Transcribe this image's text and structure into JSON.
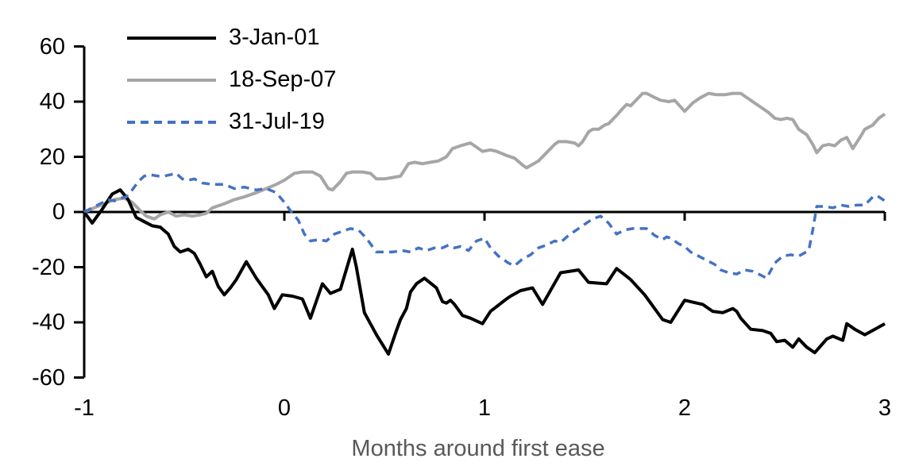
{
  "chart_data": {
    "type": "line",
    "title": "",
    "xlabel": "Months around first ease",
    "ylabel": "",
    "xlim": [
      -1,
      3
    ],
    "ylim": [
      -60,
      60
    ],
    "grid": false,
    "legend_position": "top-left-inside",
    "x_ticks": [
      -1,
      0,
      1,
      2,
      3
    ],
    "y_ticks": [
      60,
      40,
      20,
      0,
      -20,
      -40,
      -60
    ],
    "x_tick_labels": [
      "-1",
      "0",
      "1",
      "2",
      "3"
    ],
    "y_tick_labels": [
      "60",
      "40",
      "20",
      "0",
      "-20",
      "-40",
      "-60"
    ],
    "axis_color": "#000000",
    "xlabel_color": "#595959",
    "series": [
      {
        "name": "3-Jan-01",
        "color": "#000000",
        "style": "solid",
        "points": [
          [
            -1,
            0
          ],
          [
            -0.96,
            -4
          ],
          [
            -0.91,
            1
          ],
          [
            -0.86,
            6.5
          ],
          [
            -0.82,
            8
          ],
          [
            -0.78,
            4.5
          ],
          [
            -0.74,
            -2
          ],
          [
            -0.7,
            -3.5
          ],
          [
            -0.66,
            -5
          ],
          [
            -0.62,
            -5.5
          ],
          [
            -0.58,
            -8
          ],
          [
            -0.55,
            -12.5
          ],
          [
            -0.52,
            -14.5
          ],
          [
            -0.48,
            -13.5
          ],
          [
            -0.45,
            -15
          ],
          [
            -0.42,
            -19
          ],
          [
            -0.39,
            -23.5
          ],
          [
            -0.36,
            -21.5
          ],
          [
            -0.33,
            -27
          ],
          [
            -0.3,
            -30
          ],
          [
            -0.27,
            -27.5
          ],
          [
            -0.24,
            -24.5
          ],
          [
            -0.19,
            -18
          ],
          [
            -0.14,
            -24
          ],
          [
            -0.08,
            -30
          ],
          [
            -0.05,
            -35
          ],
          [
            -0.01,
            -30
          ],
          [
            0.04,
            -30.5
          ],
          [
            0.09,
            -31.5
          ],
          [
            0.13,
            -38.5
          ],
          [
            0.19,
            -26
          ],
          [
            0.23,
            -29.5
          ],
          [
            0.28,
            -28
          ],
          [
            0.34,
            -13.5
          ],
          [
            0.36,
            -20
          ],
          [
            0.4,
            -36.5
          ],
          [
            0.43,
            -40.5
          ],
          [
            0.46,
            -44.5
          ],
          [
            0.49,
            -48
          ],
          [
            0.52,
            -51.5
          ],
          [
            0.56,
            -43
          ],
          [
            0.58,
            -39
          ],
          [
            0.61,
            -35
          ],
          [
            0.63,
            -29
          ],
          [
            0.66,
            -26
          ],
          [
            0.7,
            -24
          ],
          [
            0.76,
            -27.5
          ],
          [
            0.79,
            -32.5
          ],
          [
            0.81,
            -33
          ],
          [
            0.83,
            -32
          ],
          [
            0.85,
            -33.5
          ],
          [
            0.89,
            -37.5
          ],
          [
            0.93,
            -38.5
          ],
          [
            0.99,
            -40.5
          ],
          [
            1.03,
            -36
          ],
          [
            1.11,
            -31.5
          ],
          [
            1.13,
            -30.5
          ],
          [
            1.18,
            -28.5
          ],
          [
            1.24,
            -27.5
          ],
          [
            1.29,
            -33.5
          ],
          [
            1.38,
            -22
          ],
          [
            1.47,
            -21
          ],
          [
            1.52,
            -25.5
          ],
          [
            1.61,
            -26
          ],
          [
            1.66,
            -20.5
          ],
          [
            1.73,
            -24.5
          ],
          [
            1.8,
            -30
          ],
          [
            1.89,
            -39
          ],
          [
            1.93,
            -40
          ],
          [
            2,
            -32
          ],
          [
            2.09,
            -33.5
          ],
          [
            2.14,
            -36
          ],
          [
            2.19,
            -36.5
          ],
          [
            2.24,
            -35
          ],
          [
            2.26,
            -36
          ],
          [
            2.28,
            -38.5
          ],
          [
            2.33,
            -42.5
          ],
          [
            2.39,
            -43
          ],
          [
            2.43,
            -44
          ],
          [
            2.46,
            -47
          ],
          [
            2.5,
            -46.5
          ],
          [
            2.54,
            -49
          ],
          [
            2.57,
            -46
          ],
          [
            2.61,
            -49
          ],
          [
            2.65,
            -51
          ],
          [
            2.71,
            -46
          ],
          [
            2.74,
            -45
          ],
          [
            2.79,
            -46.5
          ],
          [
            2.81,
            -40.5
          ],
          [
            2.85,
            -42.5
          ],
          [
            2.9,
            -44.5
          ],
          [
            2.95,
            -42.5
          ],
          [
            3,
            -40.5
          ]
        ]
      },
      {
        "name": "18-Sep-07",
        "color": "#a6a6a6",
        "style": "solid",
        "points": [
          [
            -1,
            0
          ],
          [
            -0.95,
            1.5
          ],
          [
            -0.9,
            3
          ],
          [
            -0.85,
            4.5
          ],
          [
            -0.8,
            5
          ],
          [
            -0.76,
            3.5
          ],
          [
            -0.72,
            0.5
          ],
          [
            -0.69,
            -1.5
          ],
          [
            -0.65,
            -2.5
          ],
          [
            -0.62,
            -1
          ],
          [
            -0.58,
            0
          ],
          [
            -0.54,
            -1.5
          ],
          [
            -0.5,
            -1
          ],
          [
            -0.46,
            -1.5
          ],
          [
            -0.42,
            -1
          ],
          [
            -0.39,
            -0.5
          ],
          [
            -0.36,
            1.5
          ],
          [
            -0.3,
            3
          ],
          [
            -0.25,
            4.5
          ],
          [
            -0.2,
            5.5
          ],
          [
            -0.14,
            7
          ],
          [
            -0.09,
            8.5
          ],
          [
            -0.04,
            10
          ],
          [
            0,
            11.5
          ],
          [
            0.05,
            14
          ],
          [
            0.09,
            14.5
          ],
          [
            0.14,
            14.5
          ],
          [
            0.18,
            13
          ],
          [
            0.22,
            8.5
          ],
          [
            0.24,
            8
          ],
          [
            0.28,
            11
          ],
          [
            0.31,
            14
          ],
          [
            0.34,
            14.5
          ],
          [
            0.39,
            14.5
          ],
          [
            0.43,
            14
          ],
          [
            0.46,
            12
          ],
          [
            0.5,
            12
          ],
          [
            0.54,
            12.5
          ],
          [
            0.58,
            13
          ],
          [
            0.62,
            17.5
          ],
          [
            0.65,
            18
          ],
          [
            0.69,
            17.5
          ],
          [
            0.73,
            18
          ],
          [
            0.77,
            18.5
          ],
          [
            0.81,
            20
          ],
          [
            0.84,
            23
          ],
          [
            0.88,
            24
          ],
          [
            0.93,
            25
          ],
          [
            0.99,
            22
          ],
          [
            1.03,
            22.5
          ],
          [
            1.06,
            22
          ],
          [
            1.11,
            20.5
          ],
          [
            1.15,
            19.5
          ],
          [
            1.19,
            17
          ],
          [
            1.21,
            16
          ],
          [
            1.27,
            18.5
          ],
          [
            1.31,
            21.5
          ],
          [
            1.35,
            24.5
          ],
          [
            1.37,
            25.5
          ],
          [
            1.41,
            25.5
          ],
          [
            1.45,
            25
          ],
          [
            1.47,
            24
          ],
          [
            1.49,
            25.5
          ],
          [
            1.52,
            29
          ],
          [
            1.54,
            30
          ],
          [
            1.57,
            30
          ],
          [
            1.6,
            31.5
          ],
          [
            1.62,
            32
          ],
          [
            1.66,
            35
          ],
          [
            1.69,
            37.5
          ],
          [
            1.71,
            39
          ],
          [
            1.73,
            38.5
          ],
          [
            1.79,
            43
          ],
          [
            1.81,
            43
          ],
          [
            1.85,
            41.5
          ],
          [
            1.88,
            40.5
          ],
          [
            1.92,
            40
          ],
          [
            1.95,
            40.5
          ],
          [
            2,
            36.5
          ],
          [
            2.04,
            39.5
          ],
          [
            2.08,
            41.5
          ],
          [
            2.12,
            43
          ],
          [
            2.16,
            42.5
          ],
          [
            2.2,
            42.5
          ],
          [
            2.24,
            43
          ],
          [
            2.28,
            43
          ],
          [
            2.32,
            41
          ],
          [
            2.36,
            39
          ],
          [
            2.4,
            37
          ],
          [
            2.42,
            36
          ],
          [
            2.45,
            34
          ],
          [
            2.48,
            33.5
          ],
          [
            2.51,
            34
          ],
          [
            2.54,
            33.5
          ],
          [
            2.57,
            30
          ],
          [
            2.61,
            28
          ],
          [
            2.64,
            24.5
          ],
          [
            2.66,
            21.5
          ],
          [
            2.69,
            24
          ],
          [
            2.72,
            24.5
          ],
          [
            2.75,
            24
          ],
          [
            2.78,
            26
          ],
          [
            2.81,
            27
          ],
          [
            2.84,
            23
          ],
          [
            2.88,
            27.5
          ],
          [
            2.9,
            30
          ],
          [
            2.94,
            31.5
          ],
          [
            2.97,
            34
          ],
          [
            3,
            35.5
          ]
        ]
      },
      {
        "name": "31-Jul-19",
        "color": "#4472c4",
        "style": "dashed",
        "points": [
          [
            -1,
            0
          ],
          [
            -0.96,
            1.5
          ],
          [
            -0.92,
            3
          ],
          [
            -0.88,
            4.5
          ],
          [
            -0.85,
            4
          ],
          [
            -0.82,
            5
          ],
          [
            -0.79,
            5.5
          ],
          [
            -0.76,
            8
          ],
          [
            -0.73,
            11
          ],
          [
            -0.7,
            13
          ],
          [
            -0.67,
            13.5
          ],
          [
            -0.63,
            13
          ],
          [
            -0.6,
            13
          ],
          [
            -0.57,
            13.5
          ],
          [
            -0.54,
            14
          ],
          [
            -0.51,
            12
          ],
          [
            -0.48,
            11.5
          ],
          [
            -0.45,
            12
          ],
          [
            -0.41,
            10.5
          ],
          [
            -0.36,
            10
          ],
          [
            -0.3,
            10
          ],
          [
            -0.25,
            8.5
          ],
          [
            -0.2,
            9
          ],
          [
            -0.14,
            8
          ],
          [
            -0.09,
            8.5
          ],
          [
            -0.04,
            7
          ],
          [
            0,
            3.5
          ],
          [
            0.03,
            0.5
          ],
          [
            0.07,
            -3
          ],
          [
            0.1,
            -8
          ],
          [
            0.13,
            -10.5
          ],
          [
            0.17,
            -10
          ],
          [
            0.21,
            -10.5
          ],
          [
            0.25,
            -8
          ],
          [
            0.29,
            -7
          ],
          [
            0.33,
            -6
          ],
          [
            0.37,
            -6.5
          ],
          [
            0.41,
            -9.5
          ],
          [
            0.46,
            -14.5
          ],
          [
            0.5,
            -14.5
          ],
          [
            0.54,
            -14.5
          ],
          [
            0.59,
            -14
          ],
          [
            0.63,
            -14.5
          ],
          [
            0.67,
            -13
          ],
          [
            0.71,
            -14
          ],
          [
            0.75,
            -13
          ],
          [
            0.79,
            -13
          ],
          [
            0.82,
            -12
          ],
          [
            0.85,
            -13
          ],
          [
            0.88,
            -12.5
          ],
          [
            0.92,
            -14
          ],
          [
            0.96,
            -10.5
          ],
          [
            1,
            -9.5
          ],
          [
            1.03,
            -13
          ],
          [
            1.07,
            -16
          ],
          [
            1.12,
            -18.5
          ],
          [
            1.15,
            -19.5
          ],
          [
            1.19,
            -17
          ],
          [
            1.23,
            -15.5
          ],
          [
            1.27,
            -13
          ],
          [
            1.31,
            -12
          ],
          [
            1.35,
            -10.5
          ],
          [
            1.38,
            -11
          ],
          [
            1.42,
            -8.5
          ],
          [
            1.46,
            -6.5
          ],
          [
            1.5,
            -4.5
          ],
          [
            1.54,
            -2.5
          ],
          [
            1.58,
            -1.5
          ],
          [
            1.62,
            -4
          ],
          [
            1.66,
            -8
          ],
          [
            1.7,
            -6.5
          ],
          [
            1.74,
            -6
          ],
          [
            1.78,
            -6
          ],
          [
            1.81,
            -6
          ],
          [
            1.85,
            -8.5
          ],
          [
            1.89,
            -10
          ],
          [
            1.91,
            -9
          ],
          [
            1.93,
            -9.5
          ],
          [
            1.97,
            -11.5
          ],
          [
            2,
            -12.5
          ],
          [
            2.03,
            -14.5
          ],
          [
            2.07,
            -16
          ],
          [
            2.11,
            -17.5
          ],
          [
            2.15,
            -19
          ],
          [
            2.18,
            -21
          ],
          [
            2.22,
            -22
          ],
          [
            2.26,
            -22.5
          ],
          [
            2.3,
            -21
          ],
          [
            2.34,
            -21.5
          ],
          [
            2.37,
            -22.5
          ],
          [
            2.41,
            -24
          ],
          [
            2.45,
            -18.5
          ],
          [
            2.49,
            -16
          ],
          [
            2.53,
            -15.5
          ],
          [
            2.57,
            -16
          ],
          [
            2.62,
            -14
          ],
          [
            2.64,
            -6.5
          ],
          [
            2.66,
            2
          ],
          [
            2.7,
            2
          ],
          [
            2.74,
            1.5
          ],
          [
            2.78,
            2.5
          ],
          [
            2.82,
            2
          ],
          [
            2.86,
            2.5
          ],
          [
            2.9,
            2.5
          ],
          [
            2.94,
            5.5
          ],
          [
            2.96,
            6
          ],
          [
            3,
            4
          ]
        ]
      }
    ]
  }
}
